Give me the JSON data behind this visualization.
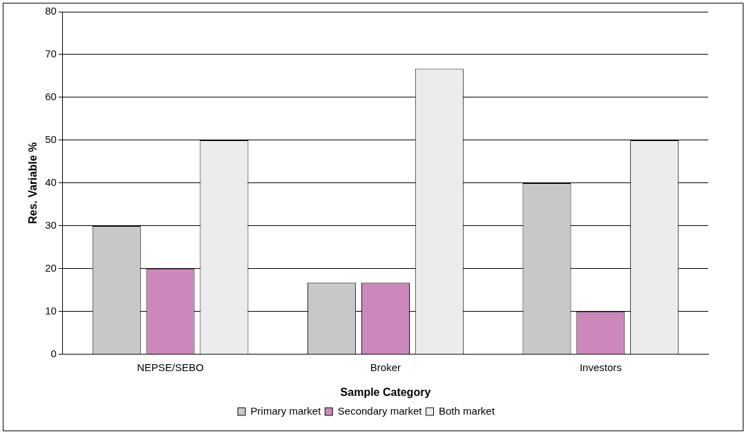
{
  "chart_data": {
    "type": "bar",
    "xlabel": "Sample Category",
    "ylabel": "Res. Variable %",
    "categories": [
      "NEPSE/SEBO",
      "Broker",
      "Investors"
    ],
    "series": [
      {
        "name": "Primary market",
        "color": "#c8c8c8",
        "values": [
          30,
          16.7,
          40
        ]
      },
      {
        "name": "Secondary market",
        "color": "#cc88bb",
        "values": [
          20,
          16.7,
          10
        ]
      },
      {
        "name": "Both market",
        "color": "#ececec",
        "values": [
          50,
          66.7,
          50
        ]
      }
    ],
    "ylim": [
      0,
      80
    ],
    "yticks": [
      0,
      10,
      20,
      30,
      40,
      50,
      60,
      70,
      80
    ],
    "grid": "y",
    "legend": "bottom"
  }
}
